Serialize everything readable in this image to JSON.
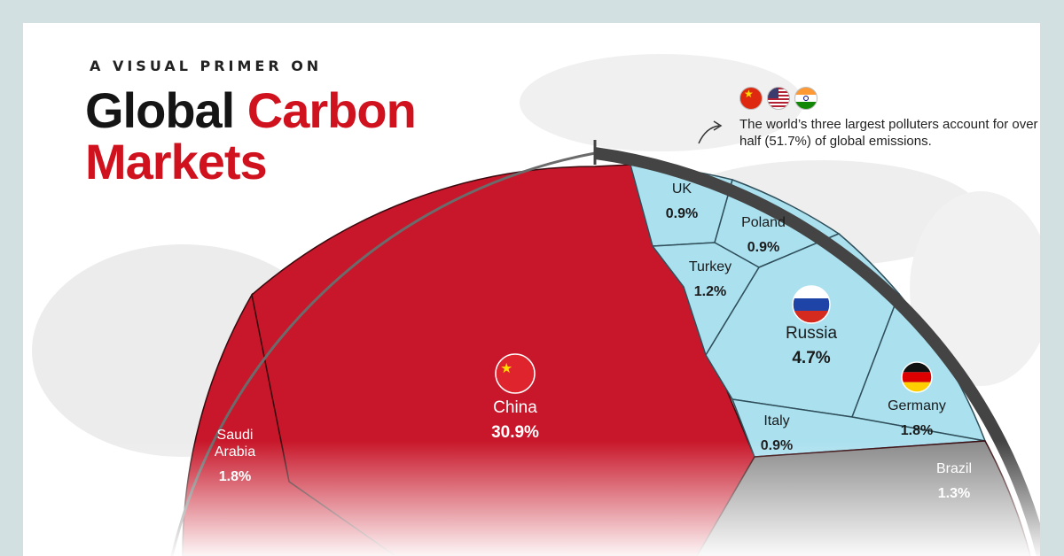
{
  "header": {
    "kicker": "A VISUAL PRIMER ON",
    "title_part1": "Global",
    "title_part2": "Carbon",
    "title_line2": "Markets"
  },
  "annotation": {
    "flags": [
      "china-flag-icon",
      "usa-flag-icon",
      "india-flag-icon"
    ],
    "text": "The world’s three largest polluters account for over half (51.7%) of global emissions."
  },
  "colors": {
    "highlight": "#c8172a",
    "europe": "#abe0ef",
    "other": "#8a8a8a",
    "rim": "#444444",
    "title_accent": "#d0121f"
  },
  "chart_data": {
    "type": "voronoi-treemap",
    "unit": "% of global emissions",
    "cells": [
      {
        "label": "China",
        "value": 30.9,
        "value_label": "30.9%",
        "group": "highlight",
        "flag": "china-flag-icon"
      },
      {
        "label": "Saudi Arabia",
        "value": 1.8,
        "value_label": "1.8%",
        "group": "highlight"
      },
      {
        "label": "UK",
        "value": 0.9,
        "value_label": "0.9%",
        "group": "europe"
      },
      {
        "label": "Poland",
        "value": 0.9,
        "value_label": "0.9%",
        "group": "europe"
      },
      {
        "label": "Turkey",
        "value": 1.2,
        "value_label": "1.2%",
        "group": "europe"
      },
      {
        "label": "Russia",
        "value": 4.7,
        "value_label": "4.7%",
        "group": "europe",
        "flag": "russia-flag-icon"
      },
      {
        "label": "Germany",
        "value": 1.8,
        "value_label": "1.8%",
        "group": "europe",
        "flag": "germany-flag-icon"
      },
      {
        "label": "Italy",
        "value": 0.9,
        "value_label": "0.9%",
        "group": "europe"
      },
      {
        "label": "Brazil",
        "value": 1.3,
        "value_label": "1.3%",
        "group": "other"
      }
    ]
  }
}
